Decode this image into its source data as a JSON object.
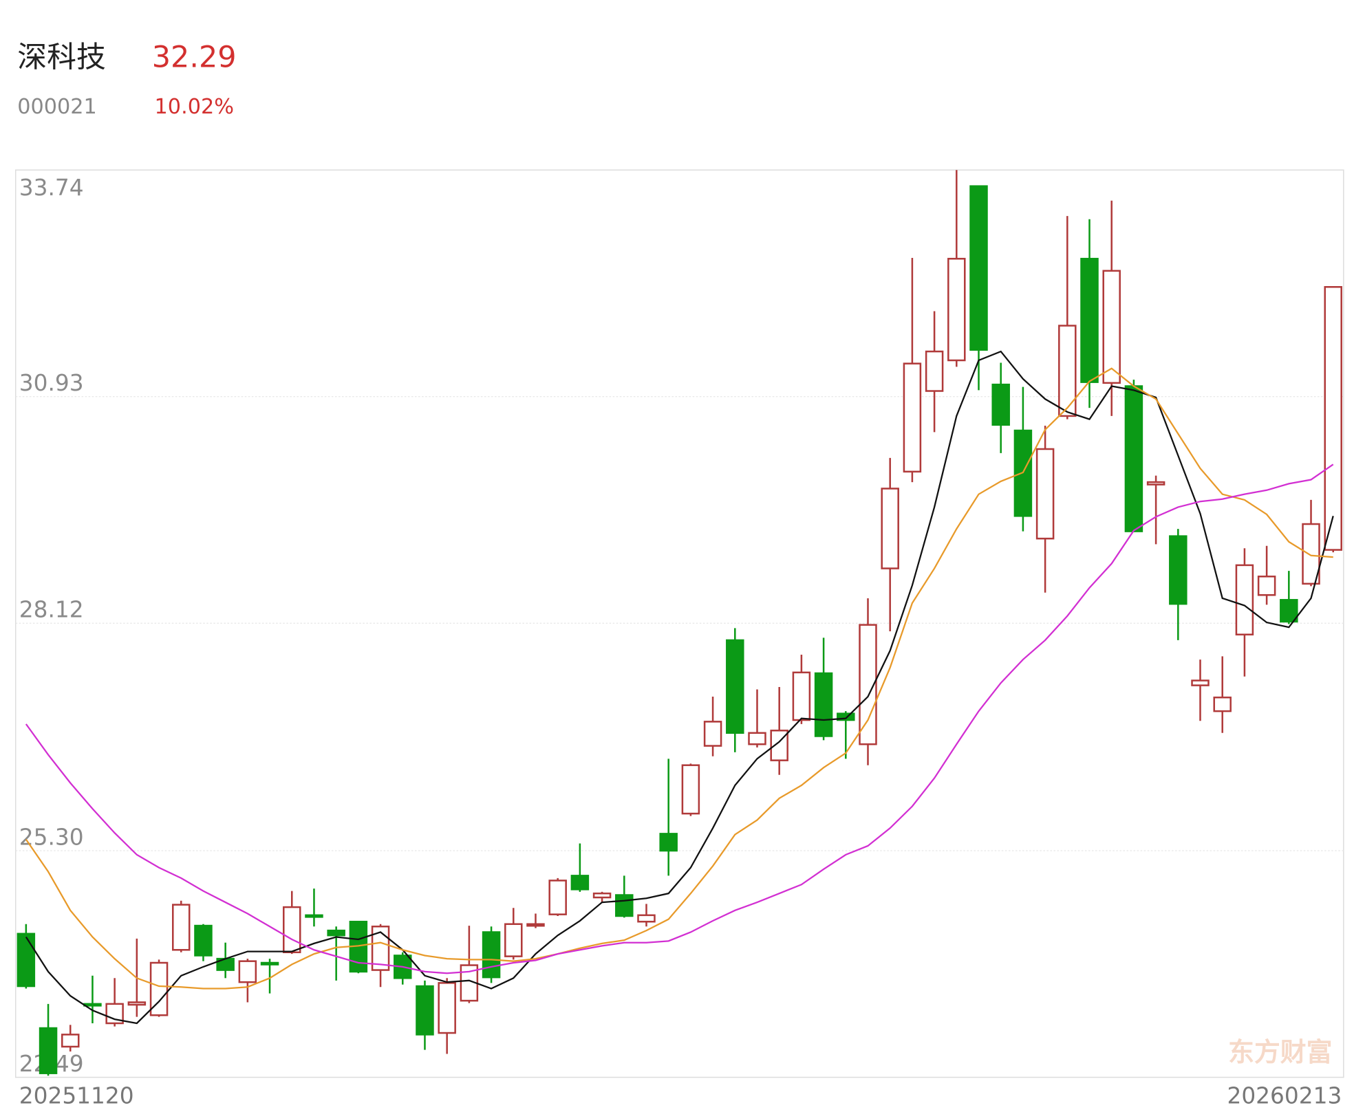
{
  "header": {
    "name": "深科技",
    "price": "32.29",
    "code": "000021",
    "change": "10.02%"
  },
  "watermark": "东方财富",
  "chart_data": {
    "type": "candlestick",
    "x_labels": [
      "20251120",
      "20260213"
    ],
    "ylim": [
      22.49,
      33.74
    ],
    "yticks": [
      33.74,
      30.93,
      28.12,
      {
        "value": 25.3,
        "label": "25.30"
      },
      22.49
    ],
    "grid": true,
    "up_color": "#b03a3a",
    "down_color": "#0b9a16",
    "open": [
      24.27,
      23.1,
      22.87,
      23.4,
      23.16,
      23.39,
      23.26,
      24.07,
      24.37,
      23.96,
      23.67,
      23.91,
      24.04,
      24.5,
      24.31,
      24.42,
      23.82,
      24.0,
      23.62,
      23.04,
      23.44,
      24.29,
      23.99,
      24.37,
      24.51,
      24.99,
      24.72,
      24.75,
      24.42,
      25.51,
      25.76,
      26.6,
      27.91,
      26.62,
      26.42,
      26.92,
      27.5,
      27.0,
      26.62,
      28.8,
      30.0,
      31.0,
      31.38,
      33.54,
      31.08,
      30.51,
      29.17,
      30.69,
      32.64,
      31.1,
      31.06,
      29.84,
      29.2,
      27.35,
      27.03,
      27.98,
      28.47,
      28.41,
      28.61,
      29.03
    ],
    "high": [
      24.39,
      23.4,
      23.14,
      23.75,
      23.72,
      24.21,
      23.95,
      24.68,
      24.39,
      24.16,
      23.96,
      23.96,
      24.8,
      24.83,
      24.36,
      24.43,
      24.39,
      24.04,
      23.69,
      23.72,
      24.37,
      24.36,
      24.59,
      24.52,
      24.96,
      25.39,
      24.79,
      24.99,
      24.64,
      26.44,
      26.38,
      27.21,
      28.06,
      27.3,
      27.33,
      27.73,
      27.94,
      27.03,
      28.43,
      30.17,
      32.65,
      31.99,
      33.74,
      33.54,
      31.35,
      31.05,
      30.57,
      33.17,
      33.13,
      33.36,
      31.14,
      29.95,
      29.29,
      27.67,
      27.71,
      29.05,
      29.08,
      28.77,
      29.65,
      32.29
    ],
    "low": [
      23.59,
      22.51,
      22.81,
      23.16,
      23.12,
      23.24,
      23.24,
      24.04,
      23.93,
      23.72,
      23.42,
      23.53,
      24.02,
      24.36,
      23.69,
      23.78,
      23.61,
      23.64,
      22.83,
      22.78,
      23.41,
      23.66,
      23.95,
      24.34,
      24.49,
      24.79,
      24.66,
      24.47,
      24.36,
      24.99,
      25.73,
      26.47,
      26.52,
      26.58,
      26.24,
      26.87,
      26.67,
      26.44,
      26.36,
      28.02,
      29.87,
      30.49,
      31.3,
      31.01,
      30.23,
      29.26,
      28.5,
      30.65,
      30.79,
      30.69,
      29.25,
      29.1,
      27.91,
      26.91,
      26.76,
      27.46,
      28.35,
      28.11,
      28.58,
      29.0
    ],
    "close": [
      23.62,
      22.54,
      23.02,
      23.39,
      23.4,
      23.42,
      23.91,
      24.63,
      24.0,
      23.82,
      23.93,
      23.9,
      24.6,
      24.49,
      24.25,
      23.8,
      24.36,
      23.72,
      23.02,
      23.66,
      23.88,
      23.73,
      24.39,
      24.39,
      24.93,
      24.82,
      24.77,
      24.49,
      24.5,
      25.3,
      26.36,
      26.9,
      26.76,
      26.76,
      26.79,
      27.51,
      26.72,
      26.92,
      28.1,
      29.79,
      31.34,
      31.49,
      32.64,
      31.51,
      30.58,
      29.45,
      30.28,
      31.81,
      31.11,
      32.49,
      29.26,
      29.87,
      28.36,
      27.41,
      27.2,
      28.84,
      28.7,
      28.14,
      29.35,
      32.29
    ],
    "series": [
      {
        "color": "#111111",
        "values": [
          24.23,
          23.8,
          23.5,
          23.32,
          23.21,
          23.16,
          23.43,
          23.75,
          23.86,
          23.96,
          24.05,
          24.05,
          24.05,
          24.15,
          24.23,
          24.2,
          24.29,
          24.07,
          23.75,
          23.67,
          23.69,
          23.59,
          23.72,
          24.02,
          24.25,
          24.43,
          24.66,
          24.68,
          24.71,
          24.77,
          25.09,
          25.58,
          26.11,
          26.44,
          26.65,
          26.94,
          26.92,
          26.94,
          27.21,
          27.78,
          28.59,
          29.56,
          30.69,
          31.38,
          31.49,
          31.15,
          30.9,
          30.74,
          30.65,
          31.06,
          31.01,
          30.92,
          30.2,
          29.48,
          28.43,
          28.34,
          28.13,
          28.07,
          28.43,
          29.45
        ]
      },
      {
        "color": "#e89a2a",
        "values": [
          25.44,
          25.04,
          24.56,
          24.23,
          23.96,
          23.72,
          23.62,
          23.61,
          23.59,
          23.59,
          23.61,
          23.72,
          23.89,
          24.02,
          24.1,
          24.12,
          24.16,
          24.07,
          24.0,
          23.96,
          23.95,
          23.95,
          23.93,
          23.96,
          24.02,
          24.09,
          24.15,
          24.19,
          24.31,
          24.45,
          24.77,
          25.11,
          25.5,
          25.68,
          25.95,
          26.11,
          26.33,
          26.51,
          26.92,
          27.57,
          28.37,
          28.8,
          29.29,
          29.72,
          29.88,
          29.99,
          30.52,
          30.79,
          31.12,
          31.28,
          31.06,
          30.9,
          30.47,
          30.04,
          29.72,
          29.65,
          29.47,
          29.13,
          28.96,
          28.94
        ]
      },
      {
        "color": "#d22fd2",
        "values": [
          26.87,
          26.49,
          26.14,
          25.82,
          25.52,
          25.25,
          25.09,
          24.96,
          24.8,
          24.66,
          24.52,
          24.36,
          24.2,
          24.07,
          23.99,
          23.91,
          23.89,
          23.86,
          23.8,
          23.78,
          23.8,
          23.86,
          23.91,
          23.94,
          24.02,
          24.07,
          24.12,
          24.16,
          24.16,
          24.18,
          24.29,
          24.43,
          24.56,
          24.66,
          24.77,
          24.88,
          25.07,
          25.25,
          25.36,
          25.58,
          25.85,
          26.2,
          26.62,
          27.03,
          27.38,
          27.67,
          27.91,
          28.21,
          28.56,
          28.86,
          29.27,
          29.44,
          29.56,
          29.63,
          29.66,
          29.72,
          29.77,
          29.85,
          29.9,
          30.09
        ]
      }
    ]
  }
}
